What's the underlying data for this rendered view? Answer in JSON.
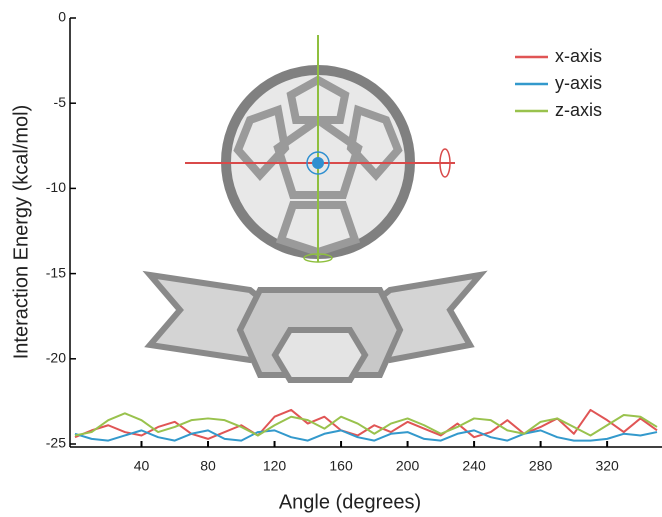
{
  "chart_data": {
    "type": "line",
    "xlabel": "Angle (degrees)",
    "ylabel": "Interaction Energy (kcal/mol)",
    "x": [
      0,
      10,
      20,
      30,
      40,
      50,
      60,
      70,
      80,
      90,
      100,
      110,
      120,
      130,
      140,
      150,
      160,
      170,
      180,
      190,
      200,
      210,
      220,
      230,
      240,
      250,
      260,
      270,
      280,
      290,
      300,
      310,
      320,
      330,
      340,
      350
    ],
    "series": [
      {
        "name": "x-axis",
        "color": "#e05555",
        "values": [
          -24.6,
          -24.2,
          -23.9,
          -24.3,
          -24.5,
          -24.0,
          -23.7,
          -24.4,
          -24.7,
          -24.3,
          -23.9,
          -24.5,
          -23.4,
          -23.0,
          -23.8,
          -23.4,
          -24.2,
          -24.5,
          -23.9,
          -24.3,
          -23.7,
          -24.1,
          -24.5,
          -23.8,
          -24.6,
          -24.3,
          -23.6,
          -24.4,
          -24.0,
          -23.5,
          -24.4,
          -23.0,
          -23.6,
          -24.3,
          -23.5,
          -24.2
        ]
      },
      {
        "name": "y-axis",
        "color": "#3399cc",
        "values": [
          -24.4,
          -24.7,
          -24.8,
          -24.5,
          -24.2,
          -24.6,
          -24.8,
          -24.4,
          -24.2,
          -24.7,
          -24.8,
          -24.3,
          -24.2,
          -24.6,
          -24.8,
          -24.4,
          -24.2,
          -24.6,
          -24.8,
          -24.4,
          -24.3,
          -24.7,
          -24.8,
          -24.4,
          -24.2,
          -24.6,
          -24.8,
          -24.4,
          -24.2,
          -24.6,
          -24.8,
          -24.8,
          -24.7,
          -24.4,
          -24.5,
          -24.3
        ]
      },
      {
        "name": "z-axis",
        "color": "#99c24d",
        "values": [
          -24.5,
          -24.3,
          -23.6,
          -23.2,
          -23.6,
          -24.3,
          -24.0,
          -23.6,
          -23.5,
          -23.6,
          -24.0,
          -24.5,
          -23.9,
          -23.4,
          -23.6,
          -24.1,
          -23.4,
          -23.8,
          -24.4,
          -23.8,
          -23.5,
          -23.9,
          -24.4,
          -24.0,
          -23.5,
          -23.6,
          -24.2,
          -24.4,
          -23.7,
          -23.5,
          -24.0,
          -24.5,
          -23.9,
          -23.3,
          -23.4,
          -24.0
        ]
      }
    ],
    "xlim": [
      -3,
      353
    ],
    "xticks": [
      40,
      80,
      120,
      160,
      200,
      240,
      280,
      320
    ],
    "ylim": [
      -25,
      0
    ],
    "yticks": [
      0,
      -5,
      -10,
      -15,
      -20,
      -25
    ]
  }
}
